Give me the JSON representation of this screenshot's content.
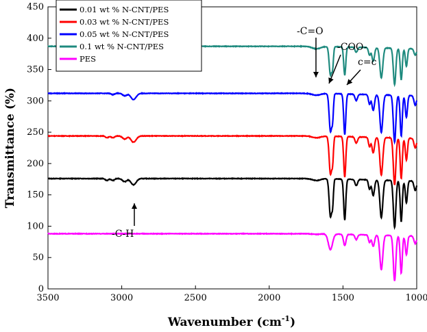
{
  "chart_data": {
    "type": "line",
    "xlabel": "Wavenumber (cm",
    "xlabel_sup": "-1",
    "xlabel_close": ")",
    "ylabel": "Transmittance (%)",
    "xlim": [
      3500,
      1000
    ],
    "ylim": [
      0,
      450
    ],
    "x_reversed": true,
    "xticks": [
      3500,
      3000,
      2500,
      2000,
      1500,
      1000
    ],
    "yticks": [
      0,
      50,
      100,
      150,
      200,
      250,
      300,
      350,
      400,
      450
    ],
    "legend_position": "top-left",
    "series": [
      {
        "name": "0.01 wt % N-CNT/PES",
        "color": "#000000",
        "baseline": 176,
        "bands": [
          [
            2920,
            -10,
            25
          ],
          [
            2980,
            -5,
            20
          ],
          [
            3060,
            -3,
            15
          ],
          [
            3100,
            -3,
            15
          ],
          [
            1680,
            -3,
            40
          ],
          [
            1585,
            -60,
            12
          ],
          [
            1570,
            -35,
            8
          ],
          [
            1488,
            -65,
            10
          ],
          [
            1410,
            -10,
            12
          ],
          [
            1320,
            -15,
            10
          ],
          [
            1295,
            -25,
            12
          ],
          [
            1240,
            -60,
            14
          ],
          [
            1150,
            -75,
            12
          ],
          [
            1105,
            -65,
            10
          ],
          [
            1070,
            -35,
            10
          ],
          [
            1010,
            -15,
            12
          ]
        ]
      },
      {
        "name": "0.03 wt % N-CNT/PES",
        "color": "#ff0000",
        "baseline": 244,
        "bands": [
          [
            2920,
            -10,
            25
          ],
          [
            2980,
            -5,
            20
          ],
          [
            3060,
            -3,
            15
          ],
          [
            3100,
            -3,
            15
          ],
          [
            1680,
            -3,
            40
          ],
          [
            1585,
            -60,
            12
          ],
          [
            1570,
            -35,
            8
          ],
          [
            1488,
            -65,
            10
          ],
          [
            1410,
            -10,
            12
          ],
          [
            1320,
            -15,
            10
          ],
          [
            1295,
            -25,
            12
          ],
          [
            1240,
            -60,
            14
          ],
          [
            1150,
            -75,
            12
          ],
          [
            1105,
            -65,
            10
          ],
          [
            1070,
            -35,
            10
          ],
          [
            1010,
            -15,
            12
          ]
        ]
      },
      {
        "name": "0.05 wt % N-CNT/PES",
        "color": "#0000ff",
        "baseline": 312,
        "bands": [
          [
            2920,
            -10,
            25
          ],
          [
            2980,
            -4,
            20
          ],
          [
            3060,
            -2,
            15
          ],
          [
            1680,
            -3,
            40
          ],
          [
            1585,
            -60,
            12
          ],
          [
            1570,
            -35,
            8
          ],
          [
            1488,
            -65,
            10
          ],
          [
            1410,
            -10,
            12
          ],
          [
            1320,
            -15,
            10
          ],
          [
            1295,
            -25,
            12
          ],
          [
            1240,
            -60,
            14
          ],
          [
            1150,
            -75,
            12
          ],
          [
            1105,
            -65,
            10
          ],
          [
            1070,
            -35,
            10
          ],
          [
            1010,
            -15,
            12
          ]
        ]
      },
      {
        "name": "0.1 wt % N-CNT/PES",
        "color": "#1e8a7e",
        "baseline": 387,
        "bands": [
          [
            2920,
            -10,
            25
          ],
          [
            2980,
            -4,
            20
          ],
          [
            3060,
            -3,
            15
          ],
          [
            3100,
            -3,
            15
          ],
          [
            1680,
            -4,
            40
          ],
          [
            1585,
            -45,
            12
          ],
          [
            1570,
            -28,
            8
          ],
          [
            1488,
            -45,
            10
          ],
          [
            1410,
            -8,
            12
          ],
          [
            1320,
            -12,
            10
          ],
          [
            1295,
            -22,
            12
          ],
          [
            1240,
            -48,
            14
          ],
          [
            1150,
            -58,
            12
          ],
          [
            1105,
            -50,
            10
          ],
          [
            1070,
            -28,
            10
          ],
          [
            1010,
            -10,
            12
          ]
        ]
      },
      {
        "name": "PES",
        "color": "#ff00ff",
        "baseline": 88,
        "bands": [
          [
            1680,
            -1,
            40
          ],
          [
            1585,
            -25,
            20
          ],
          [
            1488,
            -18,
            12
          ],
          [
            1410,
            -8,
            12
          ],
          [
            1320,
            -12,
            10
          ],
          [
            1295,
            -18,
            12
          ],
          [
            1240,
            -55,
            14
          ],
          [
            1150,
            -72,
            12
          ],
          [
            1105,
            -60,
            10
          ],
          [
            1070,
            -30,
            10
          ],
          [
            1010,
            -12,
            12
          ]
        ]
      }
    ],
    "annotations": [
      {
        "label": "-C=O",
        "x": 1680,
        "y": 395
      },
      {
        "label": "-COO-",
        "x": 1580,
        "y": 387
      },
      {
        "label": "c=c",
        "x": 1488,
        "y": 387
      },
      {
        "label": "-C-H",
        "x": 2920,
        "y": 176
      }
    ]
  }
}
